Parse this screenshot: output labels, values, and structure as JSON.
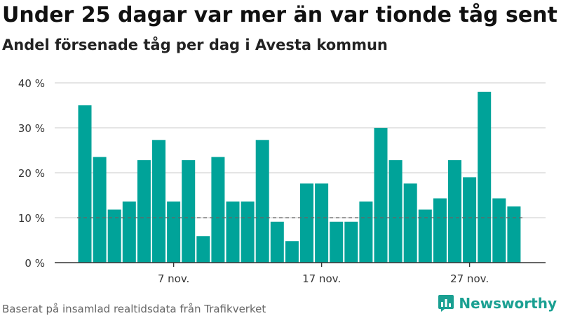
{
  "title": "Under 25 dagar var mer än var tionde tåg sent",
  "subtitle": "Andel försenade tåg per dag i Avesta kommun",
  "source": "Baserat på insamlad realtidsdata från Trafikverket",
  "brand": {
    "name": "Newsworthy",
    "icon": "newsworthy-logo-icon",
    "color": "#1aa092"
  },
  "chart_data": {
    "type": "bar",
    "title": "Under 25 dagar var mer än var tionde tåg sent",
    "subtitle": "Andel försenade tåg per dag i Avesta kommun",
    "xlabel": "",
    "ylabel": "",
    "x_unit": "november day",
    "x": [
      1,
      2,
      3,
      4,
      5,
      6,
      7,
      8,
      9,
      10,
      11,
      12,
      13,
      14,
      15,
      16,
      17,
      18,
      19,
      20,
      21,
      22,
      23,
      24,
      25,
      26,
      27,
      28,
      29,
      30
    ],
    "values": [
      35,
      23.5,
      11.8,
      13.6,
      22.8,
      27.3,
      13.6,
      22.8,
      5.9,
      23.5,
      13.6,
      13.6,
      27.3,
      9.1,
      4.8,
      17.6,
      17.6,
      9.1,
      9.1,
      13.6,
      30,
      22.8,
      17.6,
      11.8,
      14.3,
      22.8,
      19,
      38,
      14.3,
      12.5
    ],
    "xticks": [
      {
        "x": 7,
        "label": "7 nov."
      },
      {
        "x": 17,
        "label": "17 nov."
      },
      {
        "x": 27,
        "label": "27 nov."
      }
    ],
    "yticks": [
      "0 %",
      "10 %",
      "20 %",
      "30 %",
      "40 %"
    ],
    "ylim": [
      0,
      40
    ],
    "reference_line": 10,
    "grid": true,
    "legend": "none",
    "colors": {
      "bar": "#00a399",
      "grid": "#d5d5d5",
      "axis": "#333333",
      "reference": "#666666"
    }
  }
}
